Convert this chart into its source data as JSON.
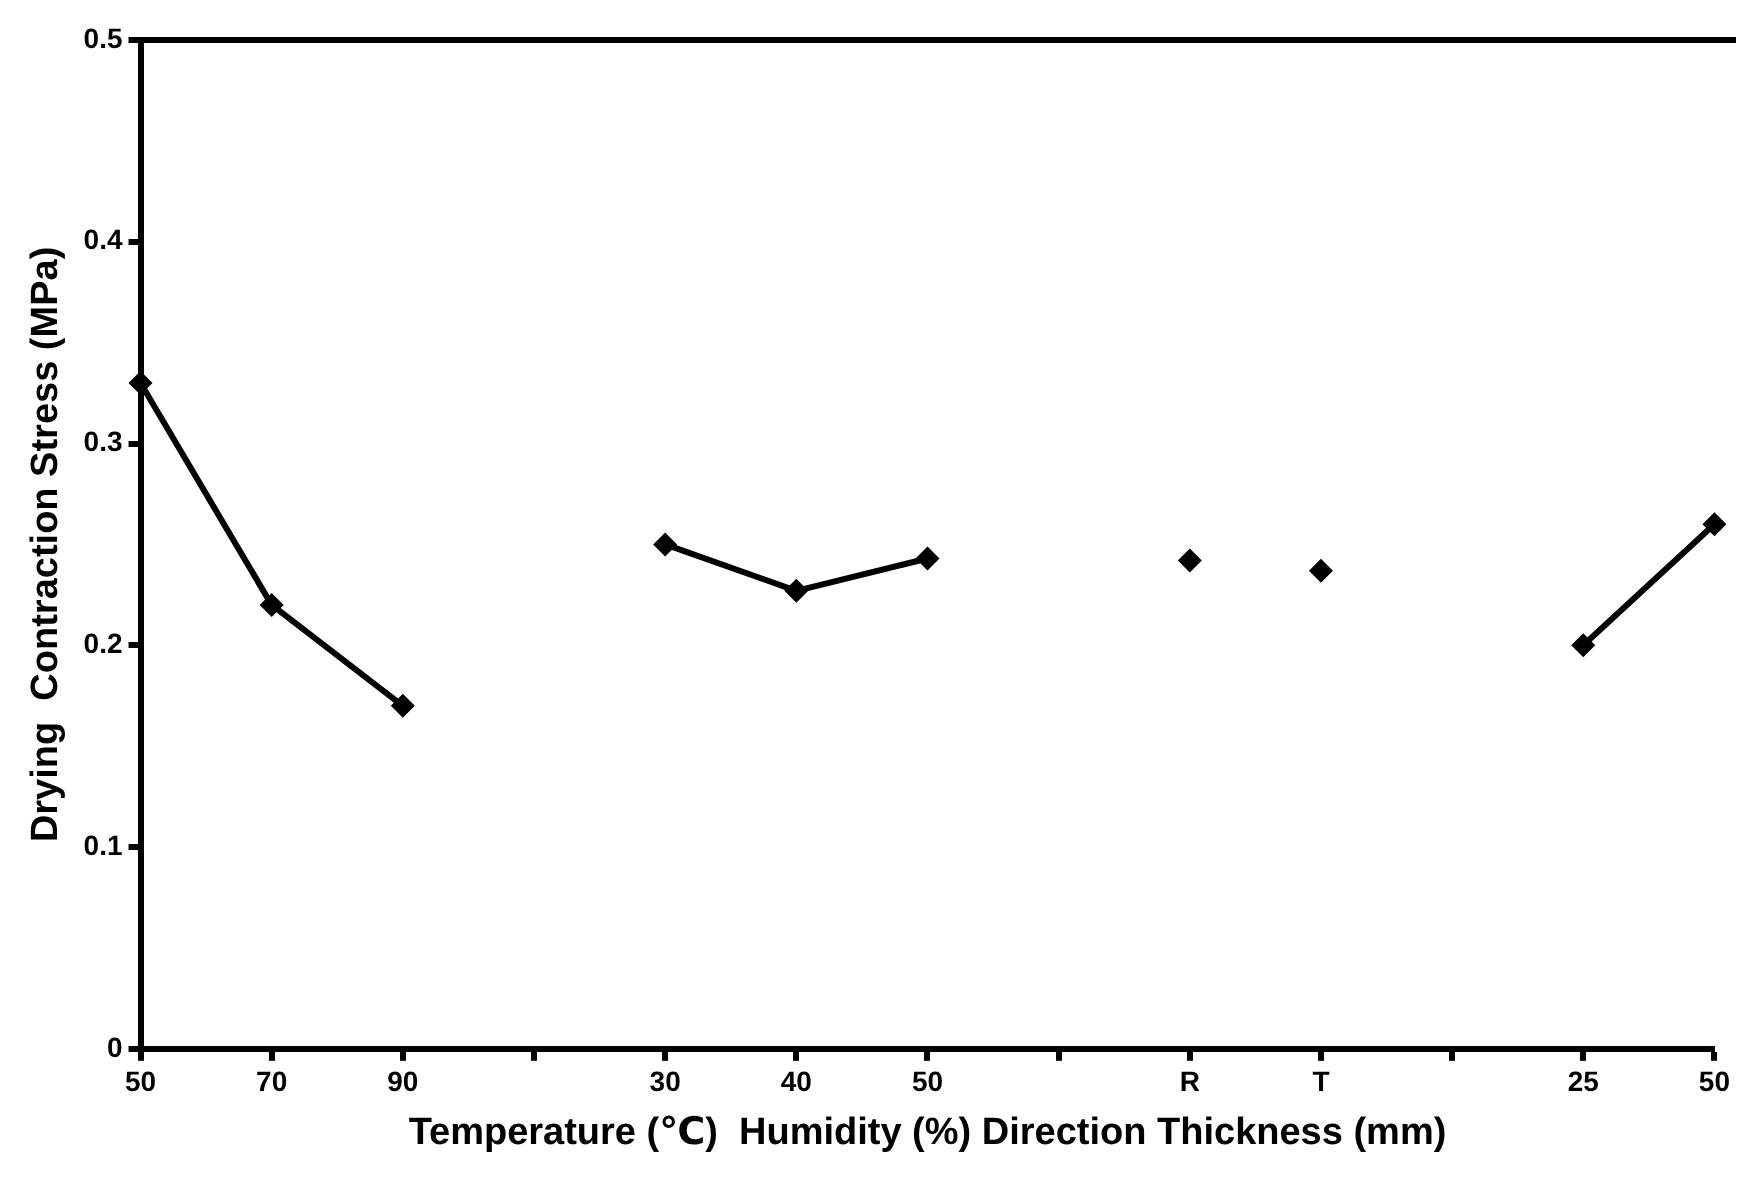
{
  "chart_data": {
    "type": "line",
    "xlabel": "Temperature (℃)  Humidity (%) Direction Thickness (mm)",
    "ylabel": "Drying  Contraction Stress (MPa)",
    "categories": [
      "50",
      "70",
      "90",
      null,
      "30",
      "40",
      "50",
      null,
      "R",
      "T",
      null,
      "25",
      "50"
    ],
    "series": [
      {
        "color": "#000000",
        "values": [
          0.33,
          0.22,
          0.17,
          null,
          null,
          null,
          null,
          null,
          null,
          null,
          null,
          null,
          null
        ]
      },
      {
        "color": "#000000",
        "values": [
          null,
          null,
          null,
          null,
          0.25,
          0.227,
          0.243,
          null,
          null,
          null,
          null,
          null,
          null
        ]
      },
      {
        "color": "#000000",
        "values": [
          null,
          null,
          null,
          null,
          null,
          null,
          null,
          null,
          0.242,
          null,
          null,
          null,
          null
        ]
      },
      {
        "color": "#000000",
        "values": [
          null,
          null,
          null,
          null,
          null,
          null,
          null,
          null,
          null,
          0.237,
          null,
          null,
          null
        ]
      },
      {
        "color": "#000000",
        "values": [
          null,
          null,
          null,
          null,
          null,
          null,
          null,
          null,
          null,
          null,
          null,
          0.2,
          0.26
        ]
      }
    ],
    "ylim": [
      0,
      0.5
    ],
    "yticks": [
      0,
      0.1,
      0.2,
      0.3,
      0.4,
      0.5
    ],
    "grid": false,
    "legend": false,
    "marker": "diamond",
    "line_style": "solid"
  }
}
